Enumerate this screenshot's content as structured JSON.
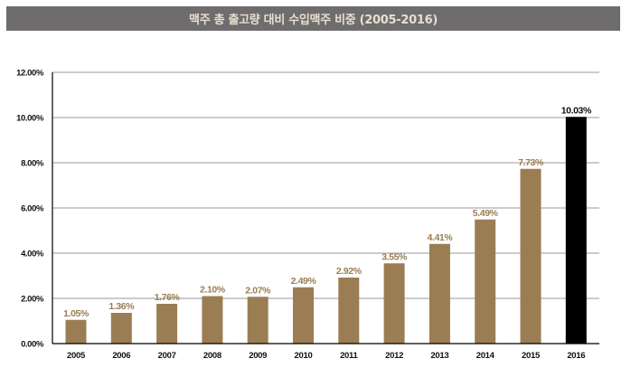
{
  "title": "맥주 총 출고량 대비 수입맥주 비중 (2005-2016)",
  "colors": {
    "title_bar": "#6e6c6c",
    "title_text": "#e9dfd0",
    "bar": "#9b7d53",
    "highlight_bar": "#000000",
    "bar_label": "#9b7d53",
    "highlight_label": "#111111",
    "grid": "#9a9a9a",
    "axis": "#000000"
  },
  "chart_data": {
    "type": "bar",
    "title": "맥주 총 출고량 대비 수입맥주 비중 (2005-2016)",
    "xlabel": "",
    "ylabel": "",
    "categories": [
      "2005",
      "2006",
      "2007",
      "2008",
      "2009",
      "2010",
      "2011",
      "2012",
      "2013",
      "2014",
      "2015",
      "2016"
    ],
    "values": [
      1.05,
      1.36,
      1.76,
      2.1,
      2.07,
      2.49,
      2.92,
      3.55,
      4.41,
      5.49,
      7.73,
      10.03
    ],
    "data_labels": [
      "1.05%",
      "1.36%",
      "1.76%",
      "2.10%",
      "2.07%",
      "2.49%",
      "2.92%",
      "3.55%",
      "4.41%",
      "5.49%",
      "7.73%",
      "10.03%"
    ],
    "highlight_index": 11,
    "ylim": [
      0,
      12
    ],
    "yticks": [
      0,
      2,
      4,
      6,
      8,
      10,
      12
    ],
    "ytick_labels": [
      "0.00%",
      "2.00%",
      "4.00%",
      "6.00%",
      "8.00%",
      "10.00%",
      "12.00%"
    ],
    "grid": true,
    "legend": "none"
  }
}
